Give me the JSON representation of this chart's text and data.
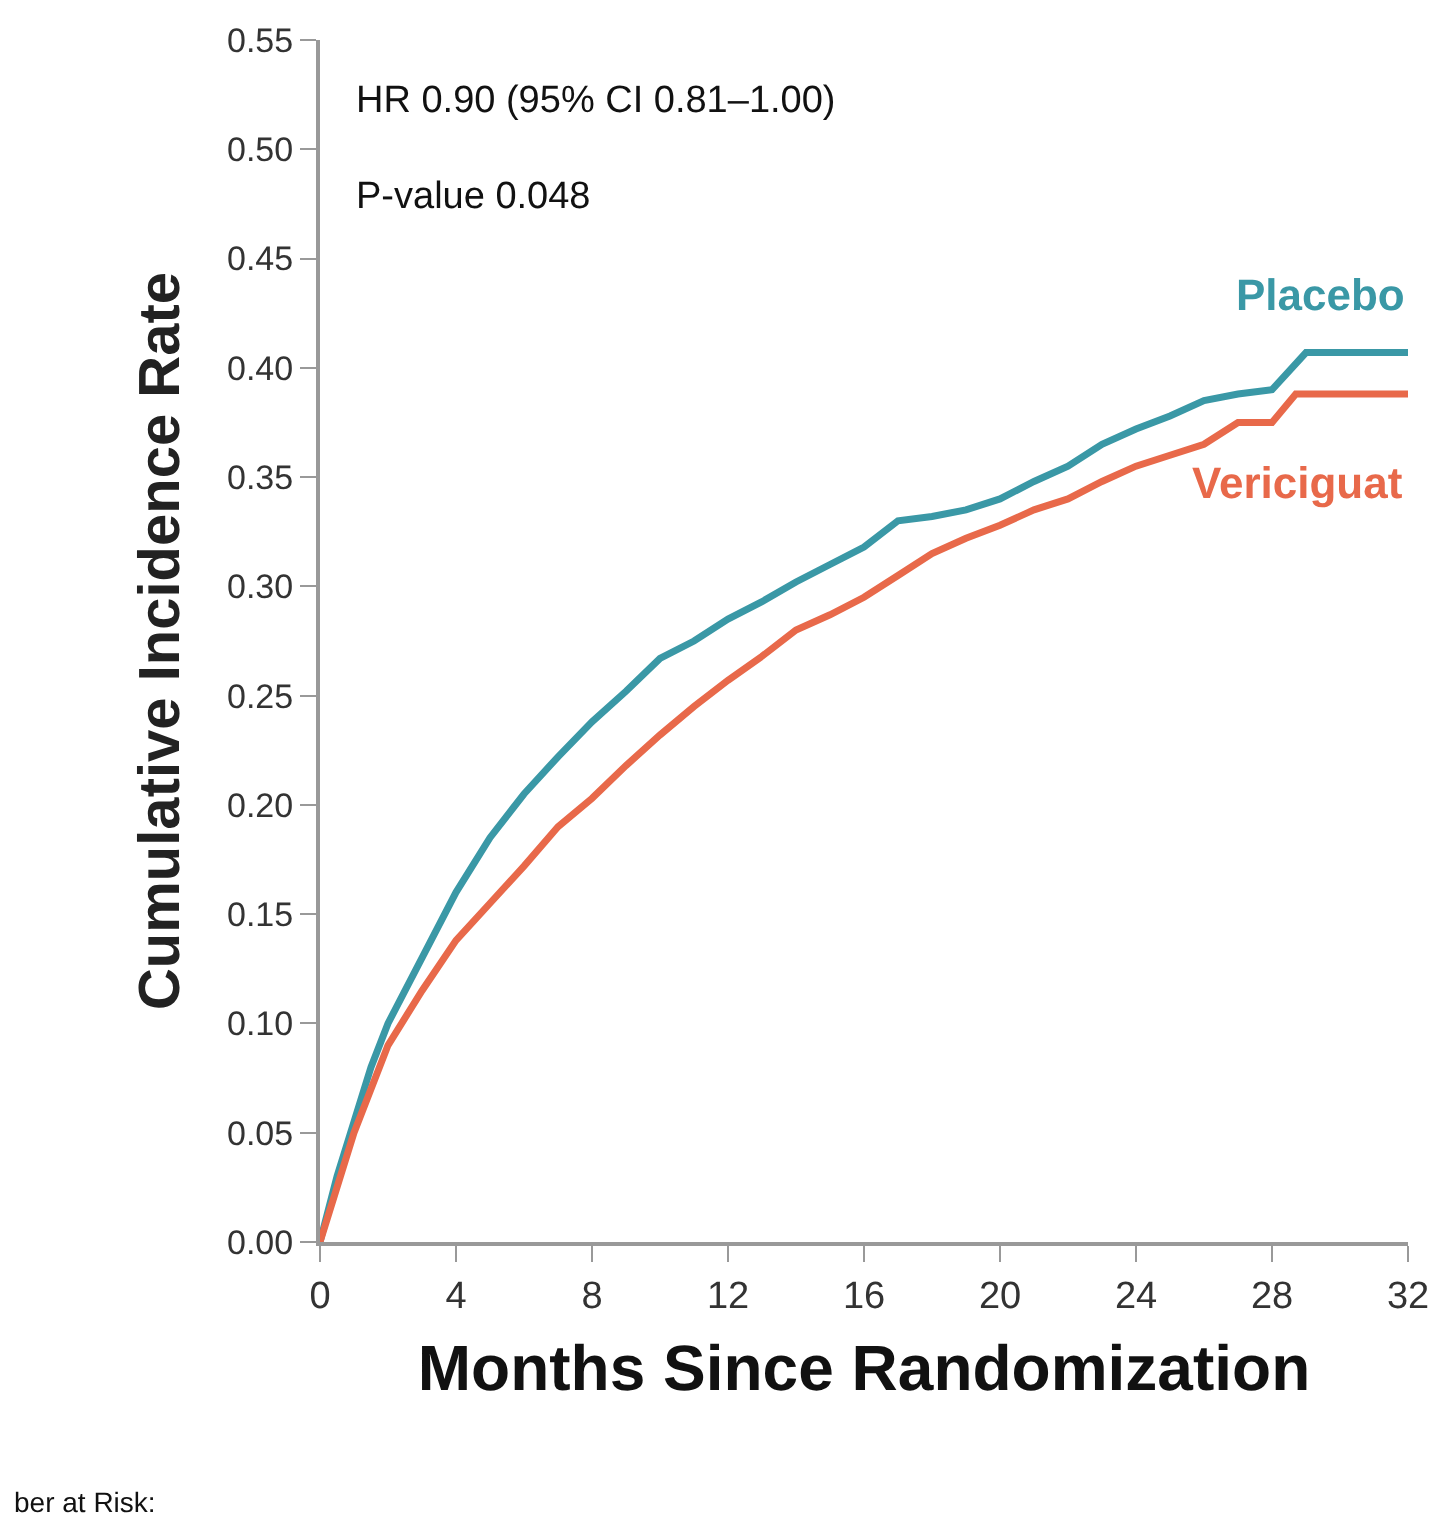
{
  "chart_data": {
    "type": "line",
    "xlabel": "Months Since Randomization",
    "ylabel": "Cumulative Incidence Rate",
    "xlim": [
      0,
      32
    ],
    "xticks": [
      0,
      4,
      8,
      12,
      16,
      20,
      24,
      28,
      32
    ],
    "ylim": [
      0,
      0.55
    ],
    "yticks": [
      {
        "value": 0,
        "label": "0.00"
      },
      {
        "value": 0.05,
        "label": "0.05"
      },
      {
        "value": 0.1,
        "label": "0.10"
      },
      {
        "value": 0.15,
        "label": "0.15"
      },
      {
        "value": 0.2,
        "label": "0.20"
      },
      {
        "value": 0.25,
        "label": "0.25"
      },
      {
        "value": 0.3,
        "label": "0.30"
      },
      {
        "value": 0.35,
        "label": "0.35"
      },
      {
        "value": 0.4,
        "label": "0.40"
      },
      {
        "value": 0.45,
        "label": "0.45"
      },
      {
        "value": 0.5,
        "label": "0.50"
      },
      {
        "value": 0.55,
        "label": "0.55"
      }
    ],
    "legend": false,
    "marker": "none",
    "line_style": "solid",
    "series": [
      {
        "name": "Placebo",
        "color": "#3a98a6",
        "x": [
          0,
          0.5,
          1,
          1.5,
          2,
          2.5,
          3,
          4,
          5,
          6,
          7,
          8,
          9,
          10,
          11,
          12,
          13,
          14,
          15,
          16,
          17,
          18,
          19,
          20,
          21,
          22,
          23,
          24,
          25,
          26,
          27,
          28,
          29,
          32
        ],
        "values": [
          0,
          0.03,
          0.055,
          0.08,
          0.1,
          0.115,
          0.13,
          0.16,
          0.185,
          0.205,
          0.222,
          0.238,
          0.252,
          0.267,
          0.275,
          0.285,
          0.293,
          0.302,
          0.31,
          0.318,
          0.33,
          0.332,
          0.335,
          0.34,
          0.348,
          0.355,
          0.365,
          0.372,
          0.378,
          0.385,
          0.388,
          0.39,
          0.407,
          0.407
        ]
      },
      {
        "name": "Vericiguat",
        "color": "#e8694a",
        "x": [
          0,
          1,
          2,
          3,
          4,
          5,
          6,
          7,
          8,
          9,
          10,
          11,
          12,
          13,
          14,
          15,
          16,
          17,
          18,
          19,
          20,
          21,
          22,
          23,
          24,
          25,
          26,
          27,
          28,
          28.7,
          32
        ],
        "values": [
          0,
          0.05,
          0.09,
          0.115,
          0.138,
          0.155,
          0.172,
          0.19,
          0.203,
          0.218,
          0.232,
          0.245,
          0.257,
          0.268,
          0.28,
          0.287,
          0.295,
          0.305,
          0.315,
          0.322,
          0.328,
          0.335,
          0.34,
          0.348,
          0.355,
          0.36,
          0.365,
          0.375,
          0.375,
          0.388,
          0.388
        ]
      }
    ],
    "annotations": [
      "HR 0.90 (95% CI 0.81–1.00)",
      "P-value 0.048",
      "ber at Risk:"
    ]
  }
}
